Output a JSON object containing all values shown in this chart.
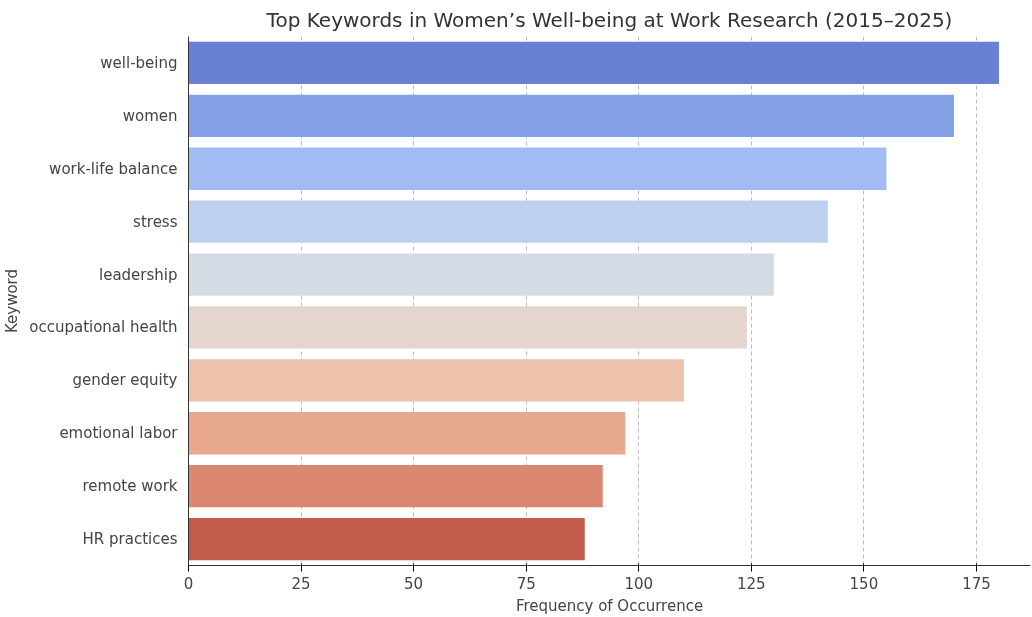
{
  "chart_data": {
    "type": "bar",
    "orientation": "horizontal",
    "title": "Top Keywords in Women’s Well-being at Work Research (2015–2025)",
    "xlabel": "Frequency of Occurrence",
    "ylabel": "Keyword",
    "categories": [
      "well-being",
      "women",
      "work-life balance",
      "stress",
      "leadership",
      "occupational health",
      "gender equity",
      "emotional labor",
      "remote work",
      "HR practices"
    ],
    "values": [
      180,
      170,
      155,
      142,
      130,
      124,
      110,
      97,
      92,
      88
    ],
    "colors": [
      "#6a80d4",
      "#84a0e6",
      "#a2bcf3",
      "#bed0f0",
      "#d5dbe5",
      "#e4d6cf",
      "#ecc2ad",
      "#e8a88f",
      "#da8670",
      "#c45c4e"
    ],
    "xlim": [
      0,
      187
    ],
    "xticks": [
      0,
      25,
      50,
      75,
      100,
      125,
      150,
      175
    ],
    "grid": "x"
  }
}
